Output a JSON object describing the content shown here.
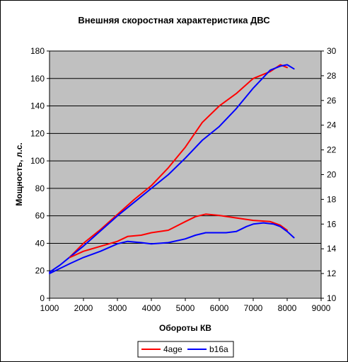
{
  "chart_data": {
    "type": "line",
    "title": "Внешняя скоростная характеристика ДВС",
    "xlabel": "Обороты КВ",
    "ylabel": "Мощность, л.с.",
    "xlim": [
      1000,
      9000
    ],
    "ylim": [
      0,
      180
    ],
    "y2lim": [
      10,
      30
    ],
    "x_ticks": [
      "1000",
      "2000",
      "3000",
      "4000",
      "5000",
      "6000",
      "7000",
      "8000",
      "9000"
    ],
    "y_ticks": [
      "0",
      "20",
      "40",
      "60",
      "80",
      "100",
      "120",
      "140",
      "160",
      "180"
    ],
    "y2_ticks": [
      "10",
      "12",
      "14",
      "16",
      "18",
      "20",
      "22",
      "24",
      "26",
      "28",
      "30"
    ],
    "grid": true,
    "plot_background": "#c0c0c0",
    "legend": {
      "placement": "bottom",
      "entries": [
        "4age",
        "b16a"
      ]
    },
    "series": [
      {
        "name": "4age",
        "color": "#ff0000",
        "axis": "left",
        "x": [
          1600,
          2000,
          2500,
          3000,
          3500,
          4000,
          4500,
          5000,
          5500,
          6000,
          6500,
          7000,
          7500,
          7800,
          8000
        ],
        "y": [
          30,
          40,
          50,
          61,
          72,
          82,
          95,
          110,
          128,
          140,
          149,
          160,
          165,
          170,
          168
        ]
      },
      {
        "name": "b16a",
        "color": "#0000ff",
        "axis": "left",
        "x": [
          1000,
          1300,
          1600,
          2000,
          2500,
          3000,
          3500,
          4000,
          4500,
          5000,
          5500,
          6000,
          6500,
          7000,
          7500,
          7800,
          8000,
          8200
        ],
        "y": [
          19,
          24,
          30,
          38,
          49,
          60,
          70,
          80,
          90,
          102,
          115,
          125,
          138,
          153,
          166,
          169,
          170,
          167
        ]
      },
      {
        "name": "4age",
        "color": "#ff0000",
        "axis": "right",
        "x": [
          1600,
          2000,
          2500,
          3000,
          3300,
          3700,
          4000,
          4500,
          5000,
          5300,
          5600,
          6000,
          6500,
          7000,
          7500,
          7800,
          8000
        ],
        "y": [
          13.3,
          13.8,
          14.2,
          14.6,
          15.0,
          15.1,
          15.3,
          15.5,
          16.2,
          16.6,
          16.8,
          16.7,
          16.5,
          16.3,
          16.2,
          15.9,
          15.5
        ]
      },
      {
        "name": "b16a",
        "color": "#0000ff",
        "axis": "right",
        "x": [
          1000,
          1300,
          1600,
          2000,
          2500,
          3000,
          3300,
          3700,
          4000,
          4500,
          5000,
          5300,
          5600,
          6000,
          6200,
          6500,
          6800,
          7000,
          7300,
          7600,
          7800,
          8000,
          8200
        ],
        "y": [
          12.0,
          12.4,
          12.8,
          13.3,
          13.8,
          14.4,
          14.6,
          14.5,
          14.4,
          14.5,
          14.8,
          15.1,
          15.3,
          15.3,
          15.3,
          15.4,
          15.8,
          16.0,
          16.1,
          16.0,
          15.8,
          15.4,
          14.9
        ]
      }
    ]
  }
}
